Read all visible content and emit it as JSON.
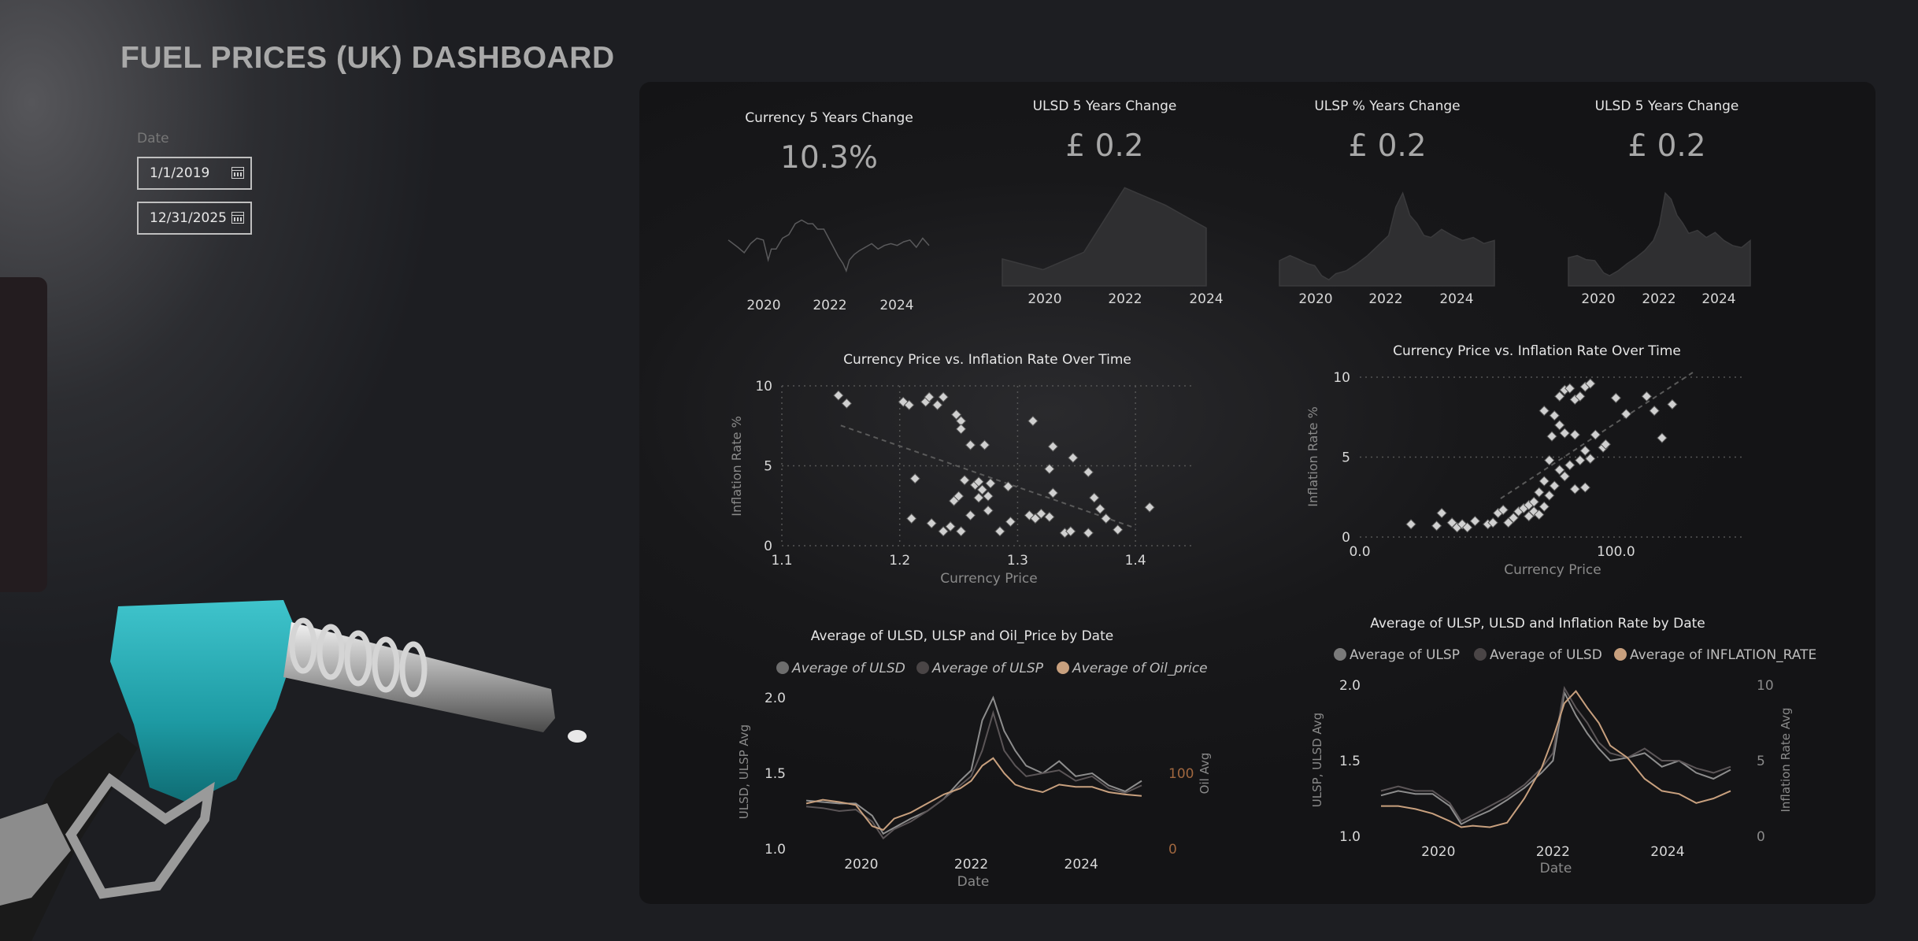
{
  "page": {
    "title": "FUEL PRICES (UK) DASHBOARD"
  },
  "filters": {
    "date_label": "Date",
    "start_date": "1/1/2019",
    "end_date": "12/31/2025",
    "calendar_icon": "calendar-icon"
  },
  "kpis": [
    {
      "title": "Currency 5 Years Change",
      "value": "10.3%"
    },
    {
      "title": "ULSD 5 Years Change",
      "value": "£ 0.2"
    },
    {
      "title": "ULSP % Years Change",
      "value": "£ 0.2"
    },
    {
      "title": "ULSD 5 Years Change",
      "value": "£ 0.2"
    }
  ],
  "colors": {
    "accent_oil": "#c8a07e",
    "series_grey": "#8d8d8d",
    "series_dark": "#4a4546",
    "marker": "#d0d0d0"
  },
  "chart_data": [
    {
      "type": "line",
      "title": "",
      "x_ticks": [
        "2020",
        "2022",
        "2024"
      ],
      "x": [
        2019.0,
        2019.3,
        2019.5,
        2019.7,
        2019.9,
        2020.1,
        2020.25,
        2020.35,
        2020.5,
        2020.7,
        2020.9,
        2021.1,
        2021.3,
        2021.5,
        2021.65,
        2021.8,
        2022.0,
        2022.15,
        2022.3,
        2022.45,
        2022.6,
        2022.7,
        2022.8,
        2022.95,
        2023.1,
        2023.3,
        2023.5,
        2023.7,
        2023.9,
        2024.1,
        2024.3,
        2024.5,
        2024.7,
        2024.9,
        2025.1,
        2025.3
      ],
      "values": [
        1.29,
        1.25,
        1.22,
        1.27,
        1.3,
        1.29,
        1.18,
        1.24,
        1.24,
        1.3,
        1.32,
        1.38,
        1.4,
        1.38,
        1.38,
        1.35,
        1.35,
        1.3,
        1.25,
        1.2,
        1.16,
        1.12,
        1.18,
        1.21,
        1.23,
        1.25,
        1.27,
        1.24,
        1.26,
        1.27,
        1.26,
        1.28,
        1.29,
        1.25,
        1.3,
        1.26
      ]
    },
    {
      "type": "area",
      "title": "",
      "x_ticks": [
        "2020",
        "2022",
        "2024"
      ],
      "x": [
        2019,
        2020,
        2021,
        2022,
        2023,
        2024
      ],
      "values": [
        1.25,
        1.17,
        1.3,
        1.78,
        1.65,
        1.48
      ]
    },
    {
      "type": "area",
      "title": "",
      "x_ticks": [
        "2020",
        "2022",
        "2024"
      ],
      "x": [
        2019.0,
        2019.3,
        2019.5,
        2019.8,
        2020.0,
        2020.2,
        2020.4,
        2020.6,
        2020.9,
        2021.2,
        2021.5,
        2021.8,
        2022.1,
        2022.3,
        2022.5,
        2022.7,
        2022.9,
        2023.1,
        2023.3,
        2023.6,
        2023.9,
        2024.2,
        2024.5,
        2024.8,
        2025.1
      ],
      "values": [
        1.25,
        1.3,
        1.27,
        1.22,
        1.2,
        1.1,
        1.06,
        1.12,
        1.15,
        1.22,
        1.3,
        1.4,
        1.5,
        1.78,
        1.92,
        1.7,
        1.62,
        1.5,
        1.48,
        1.56,
        1.5,
        1.45,
        1.48,
        1.42,
        1.45
      ]
    },
    {
      "type": "area",
      "title": "",
      "x_ticks": [
        "2020",
        "2022",
        "2024"
      ],
      "x": [
        2019.0,
        2019.3,
        2019.6,
        2019.9,
        2020.2,
        2020.4,
        2020.7,
        2021.0,
        2021.3,
        2021.6,
        2021.9,
        2022.1,
        2022.3,
        2022.5,
        2022.7,
        2022.9,
        2023.1,
        2023.4,
        2023.7,
        2024.0,
        2024.3,
        2024.6,
        2024.9,
        2025.2
      ],
      "values": [
        1.28,
        1.3,
        1.26,
        1.25,
        1.13,
        1.1,
        1.15,
        1.22,
        1.28,
        1.35,
        1.45,
        1.6,
        1.92,
        1.86,
        1.7,
        1.62,
        1.52,
        1.55,
        1.48,
        1.53,
        1.45,
        1.4,
        1.38,
        1.45
      ]
    },
    {
      "type": "scatter",
      "title": "Currency Price vs. Inflation Rate Over Time",
      "xlabel": "Currency Price",
      "ylabel": "Inflation Rate %",
      "x_ticks": [
        1.1,
        1.2,
        1.3,
        1.4
      ],
      "y_ticks": [
        0,
        5,
        10
      ],
      "xlim": [
        1.1,
        1.45
      ],
      "ylim": [
        0,
        10
      ],
      "grid": true,
      "trendline": true,
      "points": [
        [
          1.148,
          9.4
        ],
        [
          1.155,
          8.9
        ],
        [
          1.203,
          9.0
        ],
        [
          1.208,
          8.8
        ],
        [
          1.222,
          9.0
        ],
        [
          1.225,
          9.3
        ],
        [
          1.237,
          9.3
        ],
        [
          1.232,
          8.8
        ],
        [
          1.248,
          8.2
        ],
        [
          1.252,
          7.8
        ],
        [
          1.252,
          7.3
        ],
        [
          1.26,
          6.3
        ],
        [
          1.272,
          6.3
        ],
        [
          1.313,
          7.8
        ],
        [
          1.33,
          6.2
        ],
        [
          1.347,
          5.5
        ],
        [
          1.36,
          4.6
        ],
        [
          1.327,
          4.8
        ],
        [
          1.213,
          4.2
        ],
        [
          1.255,
          4.1
        ],
        [
          1.264,
          3.8
        ],
        [
          1.267,
          4.0
        ],
        [
          1.27,
          3.5
        ],
        [
          1.277,
          3.9
        ],
        [
          1.292,
          3.7
        ],
        [
          1.246,
          2.8
        ],
        [
          1.25,
          3.1
        ],
        [
          1.267,
          3.0
        ],
        [
          1.275,
          3.1
        ],
        [
          1.275,
          2.2
        ],
        [
          1.26,
          1.9
        ],
        [
          1.294,
          1.5
        ],
        [
          1.31,
          1.9
        ],
        [
          1.315,
          1.7
        ],
        [
          1.32,
          2.0
        ],
        [
          1.327,
          1.8
        ],
        [
          1.33,
          3.3
        ],
        [
          1.365,
          3.0
        ],
        [
          1.37,
          2.3
        ],
        [
          1.375,
          1.7
        ],
        [
          1.385,
          1.0
        ],
        [
          1.412,
          2.4
        ],
        [
          1.21,
          1.7
        ],
        [
          1.227,
          1.4
        ],
        [
          1.237,
          0.9
        ],
        [
          1.243,
          1.2
        ],
        [
          1.252,
          0.9
        ],
        [
          1.285,
          0.9
        ],
        [
          1.34,
          0.8
        ],
        [
          1.345,
          0.9
        ],
        [
          1.36,
          0.8
        ]
      ]
    },
    {
      "type": "scatter",
      "title": "Currency Price vs. Inflation Rate Over Time",
      "xlabel": "Currency Price",
      "ylabel": "Inflation Rate %",
      "x_ticks": [
        "0.0",
        "100.0"
      ],
      "y_ticks": [
        0,
        5,
        10
      ],
      "xlim": [
        0,
        150
      ],
      "ylim": [
        0,
        10
      ],
      "grid": true,
      "trendline": true,
      "points": [
        [
          20,
          0.8
        ],
        [
          30,
          0.7
        ],
        [
          32,
          1.5
        ],
        [
          36,
          0.9
        ],
        [
          38,
          0.6
        ],
        [
          40,
          0.8
        ],
        [
          42,
          0.6
        ],
        [
          45,
          1.0
        ],
        [
          50,
          0.8
        ],
        [
          52,
          0.9
        ],
        [
          54,
          1.5
        ],
        [
          56,
          1.7
        ],
        [
          58,
          0.9
        ],
        [
          60,
          1.2
        ],
        [
          62,
          1.6
        ],
        [
          64,
          1.8
        ],
        [
          66,
          2.0
        ],
        [
          68,
          2.2
        ],
        [
          70,
          2.8
        ],
        [
          72,
          3.5
        ],
        [
          74,
          4.8
        ],
        [
          66,
          1.3
        ],
        [
          68,
          1.6
        ],
        [
          70,
          1.4
        ],
        [
          72,
          1.9
        ],
        [
          74,
          2.6
        ],
        [
          76,
          3.2
        ],
        [
          78,
          4.2
        ],
        [
          80,
          3.8
        ],
        [
          82,
          4.5
        ],
        [
          84,
          3.0
        ],
        [
          86,
          4.8
        ],
        [
          88,
          3.1
        ],
        [
          90,
          4.9
        ],
        [
          92,
          6.4
        ],
        [
          95,
          5.6
        ],
        [
          76,
          7.6
        ],
        [
          78,
          8.8
        ],
        [
          80,
          9.2
        ],
        [
          82,
          9.3
        ],
        [
          84,
          8.6
        ],
        [
          86,
          8.8
        ],
        [
          88,
          9.4
        ],
        [
          90,
          9.6
        ],
        [
          100,
          8.7
        ],
        [
          104,
          7.7
        ],
        [
          112,
          8.8
        ],
        [
          115,
          7.9
        ],
        [
          118,
          6.2
        ],
        [
          122,
          8.3
        ],
        [
          75,
          6.3
        ],
        [
          80,
          6.5
        ],
        [
          84,
          6.4
        ],
        [
          88,
          5.4
        ],
        [
          96,
          5.8
        ],
        [
          72,
          7.9
        ],
        [
          78,
          7.0
        ]
      ]
    },
    {
      "type": "line",
      "title": "Average of ULSD, ULSP and Oil_Price by Date",
      "xlabel": "Date",
      "ylabel": "ULSD, ULSP Avg",
      "y2label": "Oil Avg",
      "x_ticks": [
        "2020",
        "2022",
        "2024"
      ],
      "y_ticks": [
        "1.0",
        "1.5",
        "2.0"
      ],
      "y2_ticks": [
        "0",
        "100"
      ],
      "ylim": [
        1.0,
        2.0
      ],
      "y2lim": [
        0,
        200
      ],
      "legend": "top",
      "x": [
        2019.0,
        2019.3,
        2019.6,
        2019.9,
        2020.2,
        2020.4,
        2020.6,
        2020.9,
        2021.2,
        2021.5,
        2021.8,
        2022.0,
        2022.2,
        2022.4,
        2022.6,
        2022.8,
        2023.0,
        2023.3,
        2023.6,
        2023.9,
        2024.2,
        2024.5,
        2024.8,
        2025.1
      ],
      "series": [
        {
          "name": "Average of ULSD",
          "values": [
            1.32,
            1.31,
            1.3,
            1.3,
            1.22,
            1.1,
            1.14,
            1.2,
            1.25,
            1.33,
            1.45,
            1.52,
            1.85,
            2.0,
            1.78,
            1.65,
            1.55,
            1.5,
            1.58,
            1.48,
            1.5,
            1.42,
            1.38,
            1.45
          ]
        },
        {
          "name": "Average of ULSP",
          "values": [
            1.28,
            1.27,
            1.25,
            1.26,
            1.18,
            1.07,
            1.13,
            1.18,
            1.25,
            1.33,
            1.42,
            1.48,
            1.65,
            1.9,
            1.65,
            1.55,
            1.48,
            1.5,
            1.52,
            1.45,
            1.48,
            1.4,
            1.37,
            1.42
          ]
        },
        {
          "name": "Average of Oil_price",
          "values": [
            60,
            65,
            62,
            58,
            30,
            25,
            40,
            48,
            60,
            72,
            80,
            90,
            110,
            120,
            100,
            85,
            80,
            75,
            85,
            82,
            82,
            75,
            72,
            70
          ]
        }
      ]
    },
    {
      "type": "line",
      "title": "Average of ULSP, ULSD and Inflation Rate by Date",
      "xlabel": "Date",
      "ylabel": "ULSP, ULSD Avg",
      "y2label": "Inflation Rate Avg",
      "x_ticks": [
        "2020",
        "2022",
        "2024"
      ],
      "y_ticks": [
        "1.0",
        "1.5",
        "2.0"
      ],
      "y2_ticks": [
        "0",
        "5",
        "10"
      ],
      "ylim": [
        1.0,
        2.0
      ],
      "y2lim": [
        0,
        10
      ],
      "legend": "top",
      "x": [
        2019.0,
        2019.3,
        2019.6,
        2019.9,
        2020.2,
        2020.4,
        2020.6,
        2020.9,
        2021.2,
        2021.5,
        2021.8,
        2022.0,
        2022.2,
        2022.4,
        2022.6,
        2022.8,
        2023.0,
        2023.3,
        2023.6,
        2023.9,
        2024.2,
        2024.5,
        2024.8,
        2025.1
      ],
      "series": [
        {
          "name": "Average of ULSP",
          "values": [
            1.27,
            1.3,
            1.28,
            1.28,
            1.2,
            1.08,
            1.12,
            1.17,
            1.24,
            1.32,
            1.42,
            1.5,
            1.95,
            1.8,
            1.68,
            1.58,
            1.5,
            1.52,
            1.55,
            1.46,
            1.5,
            1.42,
            1.38,
            1.44
          ]
        },
        {
          "name": "Average of ULSD",
          "values": [
            1.3,
            1.33,
            1.3,
            1.3,
            1.22,
            1.1,
            1.14,
            1.2,
            1.26,
            1.34,
            1.45,
            1.55,
            1.98,
            1.85,
            1.75,
            1.62,
            1.55,
            1.52,
            1.58,
            1.5,
            1.5,
            1.45,
            1.42,
            1.46
          ]
        },
        {
          "name": "Average of INFLATION_RATE",
          "values": [
            2.0,
            2.0,
            1.8,
            1.5,
            1.0,
            0.6,
            0.7,
            0.6,
            0.9,
            2.5,
            4.5,
            6.5,
            8.8,
            9.6,
            8.5,
            7.5,
            6.0,
            5.2,
            3.8,
            3.0,
            2.8,
            2.2,
            2.5,
            3.0
          ]
        }
      ]
    }
  ]
}
